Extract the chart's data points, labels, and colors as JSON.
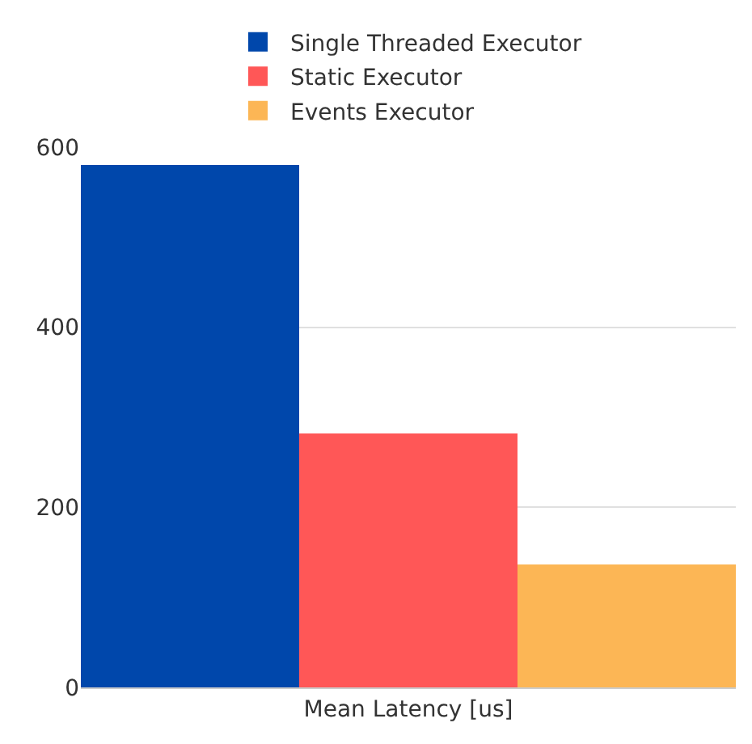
{
  "chart_data": {
    "type": "bar",
    "categories": [
      "Mean Latency [us]"
    ],
    "series": [
      {
        "name": "Single Threaded Executor",
        "color": "#0047ab",
        "values": [
          580
        ]
      },
      {
        "name": "Static Executor",
        "color": "#ff5757",
        "values": [
          282
        ]
      },
      {
        "name": "Events Executor",
        "color": "#fcb655",
        "values": [
          137
        ]
      }
    ],
    "ylim": [
      0,
      600
    ],
    "yticks": [
      0,
      200,
      400,
      600
    ],
    "grid": "y",
    "legend": "top"
  }
}
